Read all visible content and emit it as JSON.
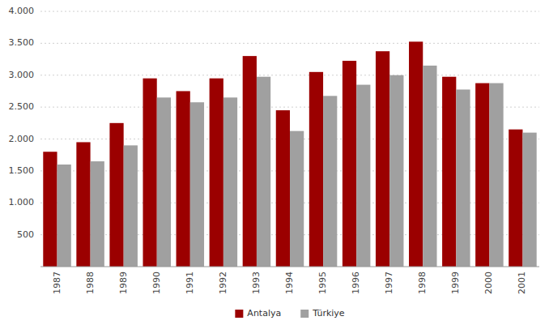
{
  "chart_data": {
    "type": "bar",
    "categories": [
      "1987",
      "1988",
      "1989",
      "1990",
      "1991",
      "1992",
      "1993",
      "1994",
      "1995",
      "1996",
      "1997",
      "1998",
      "1999",
      "2000",
      "2001"
    ],
    "series": [
      {
        "name": "Antalya",
        "color": "#9b0000",
        "values": [
          1800,
          1950,
          2250,
          2950,
          2750,
          2950,
          3300,
          2450,
          3050,
          3225,
          3375,
          3525,
          2975,
          2875,
          2150
        ]
      },
      {
        "name": "Türkiye",
        "color": "#a0a0a0",
        "values": [
          1600,
          1650,
          1900,
          2650,
          2575,
          2650,
          2975,
          2125,
          2675,
          2850,
          3000,
          3150,
          2775,
          2875,
          2100
        ]
      }
    ],
    "ylim": [
      0,
      4000
    ],
    "yticks": [
      500,
      {
        "value": 1000,
        "label": "1.000"
      },
      {
        "value": 1500,
        "label": "1.500"
      },
      {
        "value": 2000,
        "label": "2.000"
      },
      {
        "value": 2500,
        "label": "2.500"
      },
      {
        "value": 3000,
        "label": "3.000"
      },
      {
        "value": 3500,
        "label": "3.500"
      },
      {
        "value": 4000,
        "label": "4.000"
      }
    ],
    "grid": true,
    "legend": "bottom"
  }
}
